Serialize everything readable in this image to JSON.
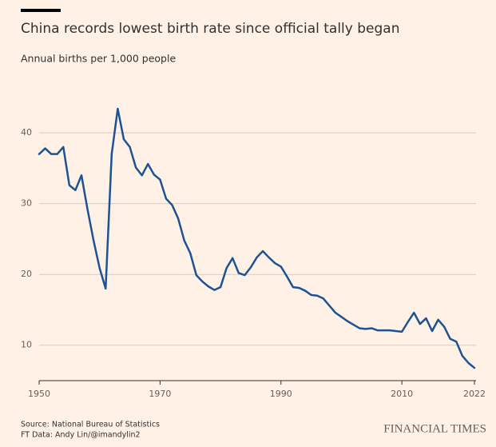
{
  "chart_data": {
    "type": "line",
    "title": "China records lowest birth rate since official tally began",
    "subtitle": "Annual births per 1,000 people",
    "source": "Source: National Bureau of Statistics",
    "credit": "FT Data: Andy Lin/@imandylin2",
    "brand": "FINANCIAL TIMES",
    "x": [
      1950,
      1951,
      1952,
      1953,
      1954,
      1955,
      1956,
      1957,
      1958,
      1959,
      1960,
      1961,
      1962,
      1963,
      1964,
      1965,
      1966,
      1967,
      1968,
      1969,
      1970,
      1971,
      1972,
      1973,
      1974,
      1975,
      1976,
      1977,
      1978,
      1979,
      1980,
      1981,
      1982,
      1983,
      1984,
      1985,
      1986,
      1987,
      1988,
      1989,
      1990,
      1991,
      1992,
      1993,
      1994,
      1995,
      1996,
      1997,
      1998,
      1999,
      2000,
      2001,
      2002,
      2003,
      2004,
      2005,
      2006,
      2007,
      2008,
      2009,
      2010,
      2011,
      2012,
      2013,
      2014,
      2015,
      2016,
      2017,
      2018,
      2019,
      2020,
      2021,
      2022
    ],
    "series": [
      {
        "color": "#1e5393",
        "values": [
          37.0,
          37.8,
          37.0,
          37.0,
          38.0,
          32.6,
          31.9,
          34.0,
          29.2,
          24.8,
          20.9,
          18.0,
          37.0,
          43.4,
          39.1,
          38.0,
          35.1,
          34.0,
          35.6,
          34.1,
          33.4,
          30.7,
          29.8,
          27.9,
          24.8,
          23.0,
          19.9,
          19.0,
          18.3,
          17.8,
          18.2,
          20.9,
          22.3,
          20.2,
          19.9,
          21.0,
          22.4,
          23.3,
          22.4,
          21.6,
          21.1,
          19.7,
          18.2,
          18.1,
          17.7,
          17.1,
          17.0,
          16.6,
          15.6,
          14.6,
          14.0,
          13.4,
          12.9,
          12.4,
          12.3,
          12.4,
          12.1,
          12.1,
          12.1,
          12.0,
          11.9,
          13.3,
          14.6,
          13.0,
          13.8,
          12.0,
          13.6,
          12.6,
          10.9,
          10.5,
          8.5,
          7.5,
          6.8
        ]
      }
    ],
    "xlim": [
      1950,
      2022
    ],
    "xticks": [
      1950,
      1970,
      1990,
      2010,
      2022
    ],
    "ylim": [
      5,
      46
    ],
    "yticks": [
      10,
      20,
      30,
      40
    ],
    "grid": true
  }
}
